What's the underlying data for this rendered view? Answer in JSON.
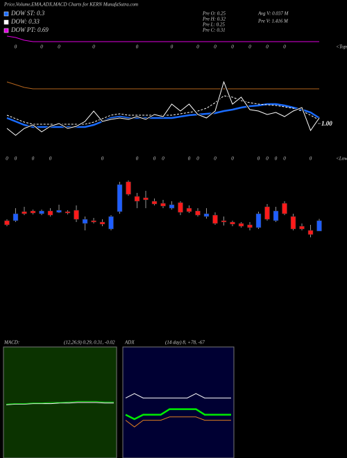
{
  "chart_data": [
    {
      "type": "line",
      "title": "Price,Volume,EMA,ADX,MACD Charts for KERN MunafaSutra.com",
      "info": [
        "Pre O: 0.25",
        "Pre H: 0.32",
        "Pre L: 0.25",
        "Pre C: 0.31",
        "Avg V: 0.037 M",
        "Pre V: 1.416 M"
      ],
      "annotations": [
        "<Tops",
        "<Lows"
      ],
      "ylim": [
        0.7,
        2.3
      ],
      "yticks": [
        {
          "value": 1,
          "label": "1.00"
        }
      ],
      "series": [
        {
          "name": "DOW ST: 0.3",
          "color": "#1a6cff",
          "values": [
            1.08,
            1.03,
            0.98,
            0.95,
            0.95,
            0.95,
            0.95,
            0.95,
            0.95,
            0.95,
            0.98,
            1.03,
            1.08,
            1.1,
            1.08,
            1.08,
            1.08,
            1.08,
            1.08,
            1.08,
            1.1,
            1.12,
            1.13,
            1.14,
            1.15,
            1.18,
            1.2,
            1.23,
            1.25,
            1.26,
            1.28,
            1.28,
            1.26,
            1.23,
            1.2,
            1.16,
            1.08
          ]
        },
        {
          "name": "DOW: 0.33",
          "color": "#ffffff",
          "dashed": true,
          "values": [
            1.12,
            1.07,
            1.02,
            0.99,
            0.99,
            0.99,
            0.99,
            0.99,
            0.99,
            0.99,
            1.02,
            1.07,
            1.12,
            1.14,
            1.12,
            1.12,
            1.12,
            1.12,
            1.12,
            1.12,
            1.14,
            1.16,
            1.18,
            1.22,
            1.3,
            1.4,
            1.38,
            1.33,
            1.3,
            1.28,
            1.27,
            1.26,
            1.24,
            1.22,
            1.18,
            1.12,
            1.05
          ]
        },
        {
          "name": "DOW PT: 0.69",
          "color": "#e000e0",
          "values": [
            2.26,
            2.24,
            2.2,
            2.18,
            2.18,
            2.18,
            2.18,
            2.18,
            2.18,
            2.18,
            2.18,
            2.18,
            2.18,
            2.18,
            2.18,
            2.18,
            2.18,
            2.18,
            2.18,
            2.18,
            2.18,
            2.18,
            2.18,
            2.18,
            2.18,
            2.18,
            2.18,
            2.18,
            2.18,
            2.18,
            2.18,
            2.18,
            2.18,
            2.18,
            2.18,
            2.18,
            2.18
          ]
        },
        {
          "color": "#b5651d",
          "values": [
            1.6,
            1.56,
            1.52,
            1.5,
            1.5,
            1.5,
            1.5,
            1.5,
            1.5,
            1.5,
            1.5,
            1.5,
            1.5,
            1.5,
            1.5,
            1.5,
            1.5,
            1.5,
            1.5,
            1.5,
            1.5,
            1.5,
            1.5,
            1.5,
            1.5,
            1.5,
            1.5,
            1.5,
            1.5,
            1.5,
            1.5,
            1.5,
            1.5,
            1.5,
            1.5,
            1.5,
            1.5
          ]
        },
        {
          "color": "#ffffff",
          "values": [
            0.93,
            0.83,
            0.93,
            0.98,
            0.88,
            0.96,
            1.0,
            0.93,
            0.96,
            1.03,
            1.18,
            1.03,
            1.06,
            1.08,
            1.06,
            1.1,
            1.06,
            1.13,
            1.1,
            1.28,
            1.18,
            1.28,
            1.13,
            1.08,
            1.18,
            1.6,
            1.28,
            1.38,
            1.2,
            1.18,
            1.13,
            1.16,
            1.1,
            1.18,
            1.23,
            0.9,
            1.08
          ]
        }
      ]
    },
    {
      "type": "candlestick",
      "ylim": [
        0.2,
        0.56
      ],
      "up_color": "#1e5eff",
      "down_color": "#ff1a1a",
      "open": [
        0.31,
        0.31,
        0.362,
        0.366,
        0.35,
        0.366,
        0.358,
        0.362,
        0.37,
        0.294,
        0.31,
        0.302,
        0.262,
        0.362,
        0.534,
        0.45,
        0.442,
        0.422,
        0.41,
        0.382,
        0.414,
        0.382,
        0.366,
        0.334,
        0.342,
        0.31,
        0.302,
        0.294,
        0.286,
        0.27,
        0.39,
        0.31,
        0.41,
        0.334,
        0.278,
        0.254,
        0.25
      ],
      "high": [
        0.318,
        0.382,
        0.39,
        0.374,
        0.374,
        0.382,
        0.402,
        0.37,
        0.398,
        0.334,
        0.326,
        0.318,
        0.342,
        0.534,
        0.542,
        0.47,
        0.482,
        0.438,
        0.43,
        0.422,
        0.422,
        0.398,
        0.382,
        0.382,
        0.358,
        0.334,
        0.31,
        0.302,
        0.302,
        0.362,
        0.406,
        0.39,
        0.422,
        0.35,
        0.294,
        0.286,
        0.32
      ],
      "low": [
        0.278,
        0.302,
        0.342,
        0.346,
        0.342,
        0.334,
        0.354,
        0.346,
        0.302,
        0.254,
        0.294,
        0.278,
        0.254,
        0.35,
        0.454,
        0.382,
        0.382,
        0.398,
        0.382,
        0.374,
        0.342,
        0.354,
        0.334,
        0.322,
        0.286,
        0.282,
        0.278,
        0.27,
        0.254,
        0.262,
        0.31,
        0.302,
        0.342,
        0.254,
        0.254,
        0.214,
        0.25
      ],
      "close": [
        0.286,
        0.35,
        0.35,
        0.354,
        0.366,
        0.342,
        0.37,
        0.354,
        0.318,
        0.318,
        0.302,
        0.29,
        0.334,
        0.518,
        0.462,
        0.422,
        0.43,
        0.406,
        0.394,
        0.402,
        0.358,
        0.362,
        0.342,
        0.35,
        0.294,
        0.302,
        0.29,
        0.278,
        0.27,
        0.35,
        0.318,
        0.366,
        0.35,
        0.262,
        0.262,
        0.23,
        0.31
      ],
      "tops": [
        null,
        "0",
        null,
        null,
        "0",
        null,
        "0",
        null,
        null,
        null,
        "0",
        null,
        null,
        null,
        null,
        "0",
        null,
        null,
        null,
        "0",
        null,
        null,
        "0",
        null,
        "0",
        null,
        "0",
        null,
        "0",
        null,
        "0",
        null,
        "0",
        null,
        null,
        null,
        null
      ],
      "lows": [
        "0",
        "0",
        null,
        "0",
        null,
        "0",
        null,
        null,
        null,
        null,
        null,
        "0",
        null,
        null,
        null,
        "0",
        null,
        "0",
        "0",
        null,
        null,
        "0",
        "0",
        null,
        "0",
        null,
        "0",
        null,
        null,
        "0",
        "0",
        "0",
        "0",
        null,
        null,
        "0",
        null
      ]
    },
    {
      "type": "line",
      "title": "MACD:",
      "subtitle": "(12,26,9) 0.29, 0.31, -0.02",
      "background": "#0b3300",
      "ylim": [
        -0.7,
        1.3
      ],
      "series": [
        {
          "color": "#ffffff",
          "values": [
            0.26,
            0.27,
            0.27,
            0.28,
            0.28,
            0.28,
            0.29,
            0.29,
            0.3,
            0.3,
            0.3,
            0.29,
            0.29
          ]
        },
        {
          "color": "#00cc00",
          "values": [
            0.27,
            0.28,
            0.28,
            0.29,
            0.29,
            0.3,
            0.3,
            0.31,
            0.32,
            0.32,
            0.32,
            0.31,
            0.31
          ]
        }
      ]
    },
    {
      "type": "line",
      "title": "ADX",
      "subtitle": "(14 day) 8, +78, -67",
      "background": "#000033",
      "ylim": [
        0,
        100
      ],
      "series": [
        {
          "color": "#ffffff",
          "values": [
            54,
            58,
            54,
            54,
            54,
            54,
            54,
            54,
            58,
            54,
            54,
            54,
            54
          ]
        },
        {
          "color": "#00ee00",
          "values": [
            39,
            35,
            39,
            39,
            39,
            44,
            44,
            44,
            44,
            39,
            39,
            39,
            39
          ]
        },
        {
          "color": "#e08020",
          "values": [
            34,
            28,
            34,
            34,
            34,
            37,
            37,
            37,
            37,
            34,
            34,
            34,
            34
          ]
        }
      ]
    }
  ]
}
